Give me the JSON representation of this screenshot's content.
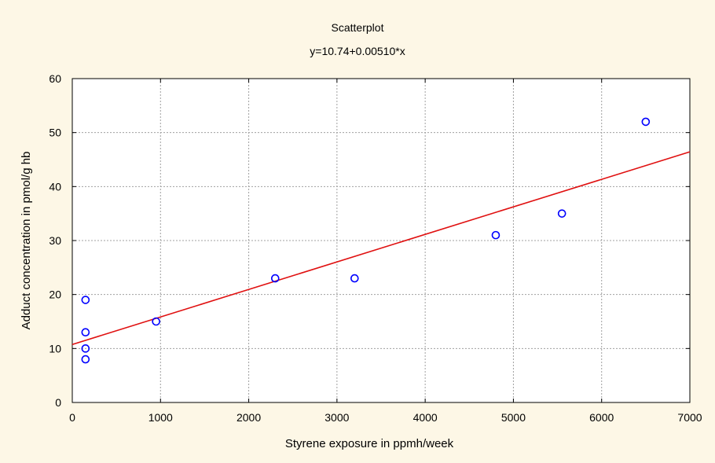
{
  "chart_data": {
    "type": "scatter",
    "title": "Scatterplot",
    "subtitle": "y=10.74+0.00510*x",
    "xlabel": "Styrene exposure in ppmh/week",
    "ylabel": "Adduct concentration in pmol/g hb",
    "xlim": [
      0,
      7000
    ],
    "ylim": [
      0,
      60
    ],
    "xticks": [
      0,
      1000,
      2000,
      3000,
      4000,
      5000,
      6000,
      7000
    ],
    "yticks": [
      0,
      10,
      20,
      30,
      40,
      50,
      60
    ],
    "grid": true,
    "points": [
      {
        "x": 150,
        "y": 19
      },
      {
        "x": 150,
        "y": 13
      },
      {
        "x": 150,
        "y": 10
      },
      {
        "x": 150,
        "y": 8
      },
      {
        "x": 950,
        "y": 15
      },
      {
        "x": 2300,
        "y": 23
      },
      {
        "x": 3200,
        "y": 23
      },
      {
        "x": 4800,
        "y": 31
      },
      {
        "x": 5550,
        "y": 35
      },
      {
        "x": 6500,
        "y": 52
      }
    ],
    "regression": {
      "intercept": 10.74,
      "slope": 0.0051
    },
    "colors": {
      "points": "#0000ff",
      "regression": "#e01010",
      "grid": "#a0a0a0",
      "background": "#fdf7e6",
      "plot_background": "#ffffff"
    }
  }
}
